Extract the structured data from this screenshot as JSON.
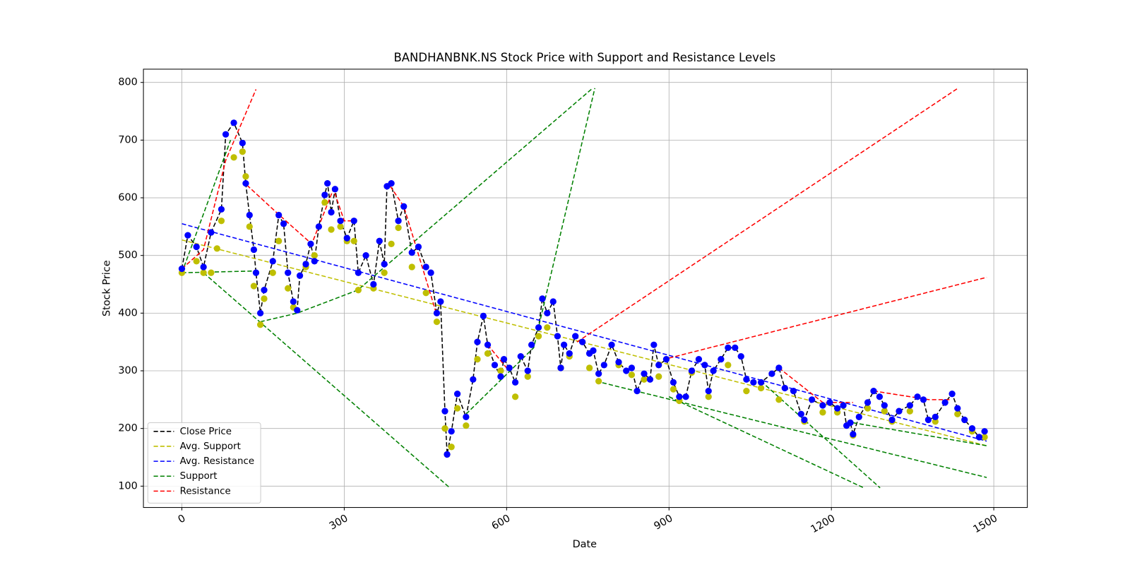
{
  "chart_data": {
    "type": "line",
    "title": "BANDHANBNK.NS Stock Price with Support and Resistance Levels",
    "x_label": "Date",
    "y_label": "Stock Price",
    "xlim": [
      -71,
      1562
    ],
    "ylim": [
      63,
      823
    ],
    "xticks": [
      0,
      300,
      600,
      900,
      1200,
      1500
    ],
    "yticks": [
      100,
      200,
      300,
      400,
      500,
      600,
      700,
      800
    ],
    "grid": true,
    "legend": "lower left",
    "series": [
      {
        "name": "Close Price",
        "color": "#000000",
        "marker_color": "#0000ff",
        "x": [
          0,
          11,
          27,
          40,
          54,
          73,
          81,
          96,
          112,
          118,
          125,
          133,
          137,
          145,
          152,
          168,
          179,
          188,
          196,
          206,
          213,
          218,
          229,
          238,
          245,
          253,
          264,
          269,
          276,
          283,
          293,
          305,
          318,
          326,
          340,
          354,
          365,
          374,
          379,
          387,
          400,
          410,
          425,
          437,
          451,
          460,
          471,
          478,
          486,
          490,
          498,
          509,
          525,
          538,
          546,
          557,
          565,
          578,
          589,
          595,
          605,
          616,
          626,
          639,
          646,
          659,
          666,
          675,
          686,
          694,
          700,
          706,
          716,
          727,
          740,
          753,
          760,
          770,
          780,
          794,
          807,
          821,
          831,
          841,
          854,
          865,
          872,
          881,
          895,
          908,
          919,
          931,
          942,
          955,
          966,
          973,
          982,
          996,
          1009,
          1022,
          1033,
          1043,
          1056,
          1070,
          1090,
          1103,
          1114,
          1130,
          1144,
          1150,
          1164,
          1184,
          1197,
          1211,
          1222,
          1228,
          1235,
          1240,
          1251,
          1267,
          1278,
          1289,
          1298,
          1312,
          1325,
          1345,
          1359,
          1370,
          1379,
          1392,
          1410,
          1423,
          1433,
          1446,
          1460,
          1473,
          1483
        ],
        "values": [
          477,
          535,
          515,
          480,
          540,
          580,
          710,
          730,
          695,
          625,
          570,
          510,
          470,
          400,
          440,
          490,
          570,
          555,
          470,
          420,
          405,
          465,
          485,
          520,
          490,
          550,
          605,
          625,
          575,
          615,
          560,
          530,
          560,
          470,
          500,
          450,
          525,
          485,
          620,
          625,
          560,
          585,
          505,
          515,
          480,
          470,
          400,
          420,
          230,
          155,
          195,
          260,
          220,
          285,
          350,
          395,
          345,
          310,
          290,
          320,
          305,
          280,
          325,
          300,
          345,
          375,
          425,
          400,
          420,
          360,
          305,
          345,
          330,
          360,
          350,
          330,
          335,
          295,
          310,
          345,
          315,
          300,
          305,
          265,
          295,
          285,
          345,
          310,
          320,
          280,
          255,
          255,
          300,
          320,
          310,
          265,
          300,
          320,
          340,
          340,
          325,
          285,
          280,
          280,
          295,
          305,
          270,
          265,
          225,
          215,
          250,
          240,
          245,
          235,
          240,
          205,
          210,
          190,
          220,
          245,
          265,
          255,
          240,
          215,
          230,
          240,
          255,
          250,
          215,
          220,
          245,
          260,
          235,
          215,
          200,
          185,
          195
        ]
      },
      {
        "name": "Avg. Support",
        "color": "#bfbf00",
        "x": [
          0,
          1487
        ],
        "values": [
          527,
          170
        ]
      },
      {
        "name": "Avg. Resistance",
        "color": "#0000ff",
        "x": [
          0,
          1487
        ],
        "values": [
          555,
          178
        ]
      },
      {
        "name": "Support",
        "color": "#008000",
        "x": [
          0,
          135,
          null,
          40,
          494,
          null,
          145,
          213,
          325,
          759,
          null,
          0,
          90,
          null,
          525,
          650,
          763,
          null,
          765,
          1487,
          null,
          900,
          1260,
          null,
          1070,
          1290,
          null,
          1240,
          1487
        ],
        "values": [
          470,
          473,
          null,
          470,
          98,
          null,
          385,
          400,
          440,
          790,
          null,
          470,
          700,
          null,
          225,
          340,
          790,
          null,
          282,
          115,
          null,
          255,
          97,
          null,
          282,
          97,
          null,
          210,
          170
        ]
      },
      {
        "name": "Resistance",
        "color": "#ff0000",
        "x": [
          0,
          40,
          81,
          137,
          null,
          120,
          180,
          240,
          280,
          300,
          318,
          null,
          385,
          410,
          470,
          null,
          565,
          600,
          null,
          730,
          1434,
          null,
          900,
          1487,
          null,
          1103,
          1184,
          1240,
          null,
          1278,
          1380,
          1420
        ],
        "values": [
          477,
          510,
          665,
          788,
          null,
          622,
          570,
          520,
          615,
          560,
          560,
          null,
          620,
          585,
          400,
          null,
          345,
          305,
          null,
          350,
          790,
          null,
          322,
          462,
          null,
          305,
          245,
          245,
          null,
          265,
          250,
          250
        ]
      }
    ],
    "support_points": {
      "color": "#bfbf00",
      "x": [
        0,
        27,
        40,
        54,
        65,
        73,
        96,
        112,
        118,
        125,
        133,
        145,
        152,
        168,
        179,
        196,
        206,
        229,
        245,
        264,
        276,
        293,
        305,
        318,
        326,
        354,
        374,
        387,
        400,
        425,
        451,
        471,
        486,
        490,
        498,
        509,
        525,
        546,
        565,
        589,
        616,
        639,
        659,
        675,
        700,
        716,
        753,
        770,
        807,
        831,
        854,
        881,
        908,
        919,
        942,
        973,
        1009,
        1043,
        1070,
        1103,
        1150,
        1184,
        1211,
        1240,
        1267,
        1298,
        1312,
        1345,
        1392,
        1433,
        1460,
        1483
      ],
      "values": [
        470,
        490,
        470,
        470,
        512,
        560,
        670,
        680,
        637,
        550,
        447,
        380,
        425,
        470,
        525,
        443,
        410,
        480,
        500,
        592,
        545,
        550,
        525,
        525,
        440,
        443,
        470,
        520,
        548,
        480,
        435,
        385,
        200,
        155,
        168,
        235,
        205,
        320,
        330,
        300,
        255,
        290,
        360,
        375,
        305,
        325,
        305,
        282,
        310,
        293,
        285,
        290,
        268,
        248,
        297,
        255,
        310,
        265,
        270,
        250,
        212,
        228,
        228,
        188,
        235,
        230,
        212,
        230,
        212,
        225,
        195,
        185
      ]
    }
  }
}
